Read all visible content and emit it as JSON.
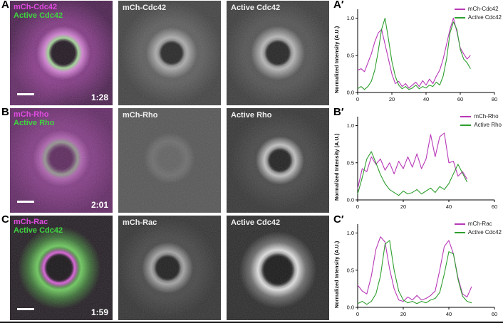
{
  "figure": {
    "rows": [
      {
        "letter": "A",
        "chart_letter": "A′",
        "merge": {
          "label_top": "mCh-Cdc42",
          "label_bottom": "Active Cdc42",
          "timestamp": "1:28"
        },
        "gray1_label": "mCh-Cdc42",
        "gray2_label": "Active Cdc42"
      },
      {
        "letter": "B",
        "chart_letter": "B′",
        "merge": {
          "label_top": "mCh-Rho",
          "label_bottom": "Active Rho",
          "timestamp": "2:01"
        },
        "gray1_label": "mCh-Rho",
        "gray2_label": "Active Rho"
      },
      {
        "letter": "C",
        "chart_letter": "C′",
        "merge": {
          "label_top": "mCh-Rac",
          "label_bottom": "Active Cdc42",
          "timestamp": "1:59"
        },
        "gray1_label": "mCh-Rac",
        "gray2_label": "Active Cdc42"
      }
    ],
    "colors": {
      "label_magenta": "#e04be0",
      "label_green": "#3fd63f",
      "trace_magenta": "#b838b8",
      "trace_green": "#2e9e2e"
    }
  },
  "chart_data": [
    {
      "type": "line",
      "title": "",
      "xlabel": "",
      "ylabel": "Normalized Intensity (A.U.)",
      "xlim": [
        0,
        80
      ],
      "ylim": [
        0,
        1.12
      ],
      "xticks": [
        0,
        20,
        40,
        60,
        80
      ],
      "yticks": [
        0,
        0.5,
        1
      ],
      "grid": false,
      "legend_position": "top-right",
      "series": [
        {
          "name": "mCh-Cdc42",
          "color": "#b838b8",
          "x": [
            0,
            2,
            4,
            6,
            8,
            10,
            12,
            14,
            16,
            18,
            20,
            22,
            24,
            26,
            28,
            30,
            32,
            34,
            36,
            38,
            40,
            42,
            44,
            46,
            48,
            50,
            52,
            54,
            56,
            58,
            60,
            62,
            64,
            66
          ],
          "y": [
            0.3,
            0.32,
            0.28,
            0.4,
            0.52,
            0.68,
            0.8,
            0.85,
            0.65,
            0.45,
            0.25,
            0.12,
            0.15,
            0.08,
            0.12,
            0.06,
            0.1,
            0.14,
            0.08,
            0.16,
            0.1,
            0.18,
            0.12,
            0.22,
            0.3,
            0.45,
            0.65,
            0.85,
            1.0,
            0.82,
            0.6,
            0.52,
            0.45,
            0.5
          ]
        },
        {
          "name": "Active Cdc42",
          "color": "#2e9e2e",
          "x": [
            0,
            2,
            4,
            6,
            8,
            10,
            12,
            14,
            16,
            18,
            20,
            22,
            24,
            26,
            28,
            30,
            32,
            34,
            36,
            38,
            40,
            42,
            44,
            46,
            48,
            50,
            52,
            54,
            56,
            58,
            60,
            62,
            64,
            66
          ],
          "y": [
            0.05,
            0.08,
            0.04,
            0.08,
            0.15,
            0.3,
            0.55,
            0.85,
            1.0,
            0.72,
            0.42,
            0.22,
            0.1,
            0.05,
            0.08,
            0.04,
            0.06,
            0.1,
            0.05,
            0.08,
            0.06,
            0.1,
            0.08,
            0.14,
            0.1,
            0.22,
            0.45,
            0.8,
            0.95,
            0.85,
            0.58,
            0.45,
            0.4,
            0.32
          ]
        }
      ]
    },
    {
      "type": "line",
      "title": "",
      "xlabel": "",
      "ylabel": "Normalized Intensity (A.U.)",
      "xlim": [
        0,
        60
      ],
      "ylim": [
        0,
        1.12
      ],
      "xticks": [
        0,
        20,
        40,
        60
      ],
      "yticks": [
        0,
        0.5,
        1
      ],
      "grid": false,
      "legend_position": "top-right",
      "series": [
        {
          "name": "mCh-Rho",
          "color": "#b838b8",
          "x": [
            0,
            2,
            4,
            6,
            8,
            10,
            12,
            14,
            16,
            18,
            20,
            22,
            24,
            26,
            28,
            30,
            32,
            34,
            36,
            38,
            40,
            42,
            44,
            46,
            48
          ],
          "y": [
            0.15,
            0.42,
            0.38,
            0.58,
            0.48,
            0.55,
            0.4,
            0.5,
            0.35,
            0.52,
            0.42,
            0.58,
            0.44,
            0.62,
            0.42,
            0.55,
            0.88,
            0.58,
            0.85,
            0.9,
            0.5,
            0.52,
            0.32,
            0.38,
            0.28
          ]
        },
        {
          "name": "Active Rho",
          "color": "#2e9e2e",
          "x": [
            0,
            2,
            4,
            6,
            8,
            10,
            12,
            14,
            16,
            18,
            20,
            22,
            24,
            26,
            28,
            30,
            32,
            34,
            36,
            38,
            40,
            42,
            44,
            46,
            48
          ],
          "y": [
            0.08,
            0.3,
            0.55,
            0.65,
            0.5,
            0.34,
            0.22,
            0.14,
            0.1,
            0.06,
            0.12,
            0.08,
            0.1,
            0.14,
            0.08,
            0.12,
            0.16,
            0.1,
            0.18,
            0.14,
            0.22,
            0.35,
            0.48,
            0.36,
            0.24
          ]
        }
      ]
    },
    {
      "type": "line",
      "title": "",
      "xlabel": "",
      "ylabel": "Normalized Intensity (A.U.)",
      "xlim": [
        0,
        60
      ],
      "ylim": [
        0,
        1.12
      ],
      "xticks": [
        0,
        20,
        40,
        60
      ],
      "yticks": [
        0,
        0.5,
        1
      ],
      "grid": false,
      "legend_position": "top-right",
      "series": [
        {
          "name": "mCh-Rac",
          "color": "#b838b8",
          "x": [
            0,
            2,
            4,
            6,
            8,
            10,
            12,
            14,
            16,
            18,
            20,
            22,
            24,
            26,
            28,
            30,
            32,
            34,
            36,
            38,
            40,
            42,
            44,
            46,
            48,
            50
          ],
          "y": [
            0.3,
            0.22,
            0.18,
            0.42,
            0.78,
            0.95,
            0.88,
            0.52,
            0.25,
            0.1,
            0.08,
            0.14,
            0.1,
            0.16,
            0.1,
            0.12,
            0.16,
            0.22,
            0.5,
            0.82,
            0.9,
            0.72,
            0.4,
            0.18,
            0.14,
            0.28
          ]
        },
        {
          "name": "Active Cdc42",
          "color": "#2e9e2e",
          "x": [
            0,
            2,
            4,
            6,
            8,
            10,
            12,
            14,
            16,
            18,
            20,
            22,
            24,
            26,
            28,
            30,
            32,
            34,
            36,
            38,
            40,
            42,
            44,
            46,
            48,
            50
          ],
          "y": [
            0.05,
            0.08,
            0.04,
            0.08,
            0.18,
            0.42,
            0.85,
            0.9,
            0.5,
            0.22,
            0.1,
            0.06,
            0.08,
            0.05,
            0.08,
            0.06,
            0.1,
            0.12,
            0.2,
            0.45,
            0.75,
            0.72,
            0.38,
            0.15,
            0.08,
            0.06
          ]
        }
      ]
    }
  ]
}
